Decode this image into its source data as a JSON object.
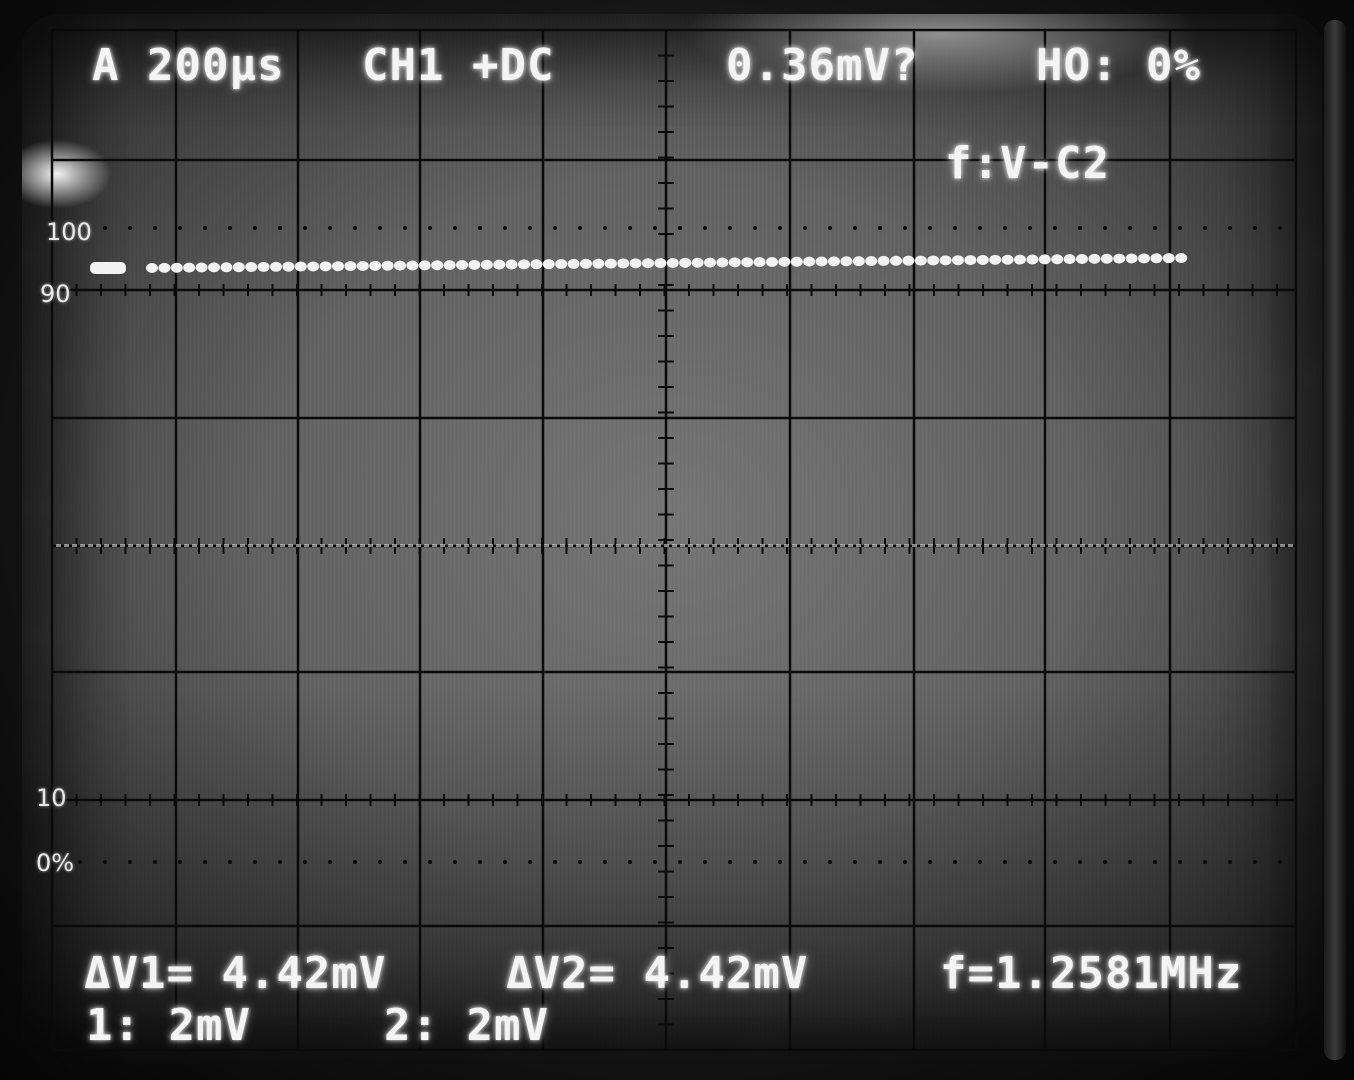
{
  "header": {
    "timebase": "A 200µs",
    "channel_coupling": "CH1 +DC",
    "cursor_readout": "0.36mV?",
    "holdoff": "HO: 0%",
    "cursor_mode": "f:V-C2"
  },
  "graticule": {
    "label_100": "100",
    "label_90": "90",
    "label_10": "10",
    "label_0": "0%"
  },
  "footer": {
    "delta_v1": "ΔV1= 4.42mV",
    "delta_v2": "ΔV2= 4.42mV",
    "frequency": "f=1.2581MHz",
    "ch1_scale": "1: 2mV",
    "ch2_scale": "2: 2mV"
  },
  "display": {
    "phosphor_color": "#f2f2f2",
    "grid_color": "#0a0a0a",
    "screen_color": "#6e6e6e"
  }
}
